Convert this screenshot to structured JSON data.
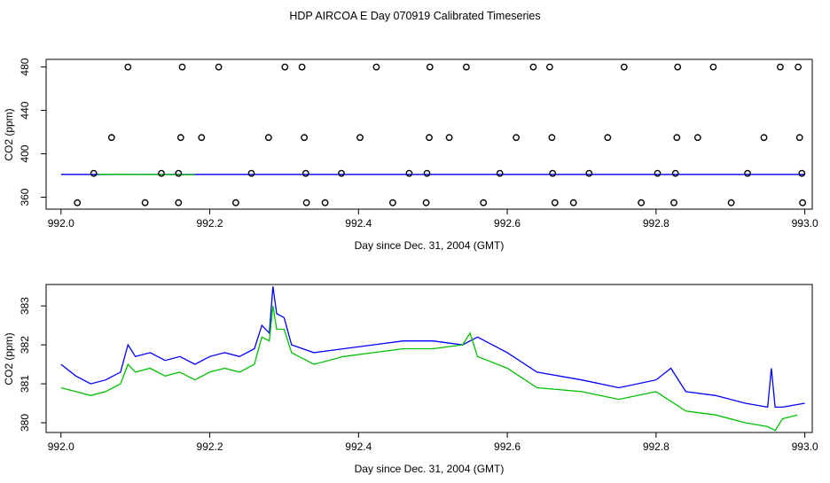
{
  "title": "HDP AIRCOA E  Day 070919  Calibrated Timeseries",
  "colors": {
    "blue": "#0000ff",
    "green": "#00c000",
    "black": "#000000"
  },
  "chart_data": [
    {
      "type": "scatter",
      "xlabel": "Day since Dec. 31, 2004 (GMT)",
      "ylabel": "CO2 (ppm)",
      "xlim": [
        991.98,
        993.01
      ],
      "ylim": [
        349,
        487
      ],
      "xticks": [
        992.0,
        992.2,
        992.4,
        992.6,
        992.8,
        993.0
      ],
      "xtick_labels": [
        "992.0",
        "992.2",
        "992.4",
        "992.6",
        "992.8",
        "993.0"
      ],
      "yticks": [
        360,
        400,
        440,
        480
      ],
      "ytick_labels": [
        "360",
        "400",
        "440",
        "480"
      ],
      "points": [
        [
          992.09,
          480
        ],
        [
          992.163,
          480
        ],
        [
          992.212,
          480
        ],
        [
          992.301,
          480
        ],
        [
          992.324,
          480
        ],
        [
          992.424,
          480
        ],
        [
          992.496,
          480
        ],
        [
          992.545,
          480
        ],
        [
          992.635,
          480
        ],
        [
          992.657,
          480
        ],
        [
          992.757,
          480
        ],
        [
          992.829,
          480
        ],
        [
          992.877,
          480
        ],
        [
          992.967,
          480
        ],
        [
          992.991,
          480
        ],
        [
          992.068,
          415
        ],
        [
          992.161,
          415
        ],
        [
          992.189,
          415
        ],
        [
          992.279,
          415
        ],
        [
          992.327,
          415
        ],
        [
          992.402,
          415
        ],
        [
          992.495,
          415
        ],
        [
          992.522,
          415
        ],
        [
          992.612,
          415
        ],
        [
          992.66,
          415
        ],
        [
          992.735,
          415
        ],
        [
          992.828,
          415
        ],
        [
          992.856,
          415
        ],
        [
          992.945,
          415
        ],
        [
          992.993,
          415
        ],
        [
          992.044,
          382
        ],
        [
          992.135,
          382
        ],
        [
          992.158,
          382
        ],
        [
          992.256,
          382
        ],
        [
          992.329,
          382
        ],
        [
          992.377,
          382
        ],
        [
          992.468,
          382
        ],
        [
          992.492,
          382
        ],
        [
          992.59,
          382
        ],
        [
          992.661,
          382
        ],
        [
          992.71,
          382
        ],
        [
          992.802,
          382
        ],
        [
          992.826,
          382
        ],
        [
          992.923,
          382
        ],
        [
          992.996,
          382
        ],
        [
          992.022,
          355
        ],
        [
          992.113,
          355
        ],
        [
          992.158,
          355
        ],
        [
          992.235,
          355
        ],
        [
          992.33,
          355
        ],
        [
          992.355,
          355
        ],
        [
          992.446,
          355
        ],
        [
          992.491,
          355
        ],
        [
          992.568,
          355
        ],
        [
          992.664,
          355
        ],
        [
          992.689,
          355
        ],
        [
          992.78,
          355
        ],
        [
          992.824,
          355
        ],
        [
          992.901,
          355
        ],
        [
          992.997,
          355
        ]
      ],
      "series": [
        {
          "color": "blue",
          "x": [
            992.0,
            993.0
          ],
          "values": [
            381,
            381
          ]
        },
        {
          "color": "green",
          "x": [
            992.05,
            992.18
          ],
          "values": [
            381.2,
            380.8
          ]
        }
      ]
    },
    {
      "type": "line",
      "xlabel": "Day since Dec. 31, 2004 (GMT)",
      "ylabel": "CO2 (ppm)",
      "xlim": [
        991.98,
        993.01
      ],
      "ylim": [
        379.75,
        383.55
      ],
      "xticks": [
        992.0,
        992.2,
        992.4,
        992.6,
        992.8,
        993.0
      ],
      "xtick_labels": [
        "992.0",
        "992.2",
        "992.4",
        "992.6",
        "992.8",
        "993.0"
      ],
      "yticks": [
        380,
        381,
        382,
        383
      ],
      "ytick_labels": [
        "380",
        "381",
        "382",
        "383"
      ],
      "series": [
        {
          "color": "blue",
          "x": [
            992.0,
            992.02,
            992.04,
            992.06,
            992.08,
            992.09,
            992.1,
            992.12,
            992.14,
            992.16,
            992.18,
            992.2,
            992.22,
            992.24,
            992.26,
            992.27,
            992.28,
            992.285,
            992.29,
            992.3,
            992.31,
            992.34,
            992.38,
            992.42,
            992.46,
            992.5,
            992.54,
            992.56,
            992.6,
            992.64,
            992.7,
            992.75,
            992.8,
            992.82,
            992.84,
            992.88,
            992.92,
            992.95,
            992.955,
            992.96,
            992.97,
            993.0
          ],
          "values": [
            381.5,
            381.2,
            381.0,
            381.1,
            381.3,
            382.0,
            381.7,
            381.8,
            381.6,
            381.7,
            381.5,
            381.7,
            381.8,
            381.7,
            381.9,
            382.5,
            382.3,
            383.5,
            382.8,
            382.7,
            382.0,
            381.8,
            381.9,
            382.0,
            382.1,
            382.1,
            382.0,
            382.2,
            381.8,
            381.3,
            381.1,
            380.9,
            381.1,
            381.4,
            380.8,
            380.7,
            380.5,
            380.4,
            381.4,
            380.4,
            380.4,
            380.5
          ]
        },
        {
          "color": "green",
          "x": [
            992.0,
            992.02,
            992.04,
            992.06,
            992.08,
            992.09,
            992.1,
            992.12,
            992.14,
            992.16,
            992.18,
            992.2,
            992.22,
            992.24,
            992.26,
            992.27,
            992.28,
            992.285,
            992.29,
            992.3,
            992.31,
            992.34,
            992.38,
            992.42,
            992.46,
            992.5,
            992.54,
            992.55,
            992.56,
            992.6,
            992.64,
            992.7,
            992.75,
            992.8,
            992.84,
            992.88,
            992.92,
            992.95,
            992.96,
            992.97,
            992.99
          ],
          "values": [
            380.9,
            380.8,
            380.7,
            380.8,
            381.0,
            381.5,
            381.3,
            381.4,
            381.2,
            381.3,
            381.1,
            381.3,
            381.4,
            381.3,
            381.5,
            382.2,
            382.1,
            383.0,
            382.4,
            382.4,
            381.8,
            381.5,
            381.7,
            381.8,
            381.9,
            381.9,
            382.0,
            382.3,
            381.7,
            381.4,
            380.9,
            380.8,
            380.6,
            380.8,
            380.3,
            380.2,
            380.0,
            379.9,
            379.8,
            380.1,
            380.2
          ]
        }
      ]
    }
  ]
}
